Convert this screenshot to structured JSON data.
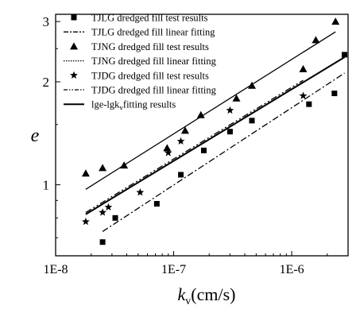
{
  "chart_data": {
    "type": "scatter",
    "xlabel": "k",
    "xlabel_sub": "v",
    "xlabel_unit": "(cm/s)",
    "ylabel": "e",
    "x_scale": "log",
    "y_scale": "log",
    "xlim": [
      1e-08,
      3e-06
    ],
    "ylim": [
      0.62,
      3.15
    ],
    "x_ticks": [
      {
        "value": 1e-08,
        "label": "1E-8"
      },
      {
        "value": 1e-07,
        "label": "1E-7"
      },
      {
        "value": 1e-06,
        "label": "1E-6"
      }
    ],
    "y_ticks": [
      {
        "value": 1,
        "label": "1"
      },
      {
        "value": 2,
        "label": "2"
      },
      {
        "value": 3,
        "label": "3"
      }
    ],
    "legend_position": "top-left",
    "legend": [
      {
        "label": "TJLG dredged fill test results",
        "marker": "square"
      },
      {
        "label": "TJLG dredged fill linear fitting",
        "line": "dashdot"
      },
      {
        "label": "TJNG dredged fill test results",
        "marker": "triangle"
      },
      {
        "label": "TJNG dredged fill linear fitting",
        "line": "dotted"
      },
      {
        "label": "TJDG dredged fill test results",
        "marker": "star"
      },
      {
        "label": "TJDG dredged fill linear fitting",
        "line": "dashdotdot"
      },
      {
        "label": "lge-lgk",
        "label_sub": "v",
        "label_tail": "fitting results",
        "line": "solid"
      }
    ],
    "series": [
      {
        "name": "TJLG dredged fill test results",
        "marker": "square",
        "points": [
          [
            2.5e-08,
            0.68
          ],
          [
            3.2e-08,
            0.8
          ],
          [
            7.2e-08,
            0.88
          ],
          [
            1.15e-07,
            1.07
          ],
          [
            1.8e-07,
            1.26
          ],
          [
            3e-07,
            1.43
          ],
          [
            4.6e-07,
            1.54
          ],
          [
            1.4e-06,
            1.72
          ],
          [
            2.3e-06,
            1.85
          ],
          [
            2.8e-06,
            2.4
          ]
        ]
      },
      {
        "name": "TJNG dredged fill test results",
        "marker": "triangle",
        "points": [
          [
            1.8e-08,
            1.08
          ],
          [
            2.5e-08,
            1.12
          ],
          [
            3.8e-08,
            1.14
          ],
          [
            8.8e-08,
            1.28
          ],
          [
            1.25e-07,
            1.44
          ],
          [
            1.7e-07,
            1.6
          ],
          [
            3.4e-07,
            1.79
          ],
          [
            4.6e-07,
            1.95
          ],
          [
            1.25e-06,
            2.18
          ],
          [
            1.6e-06,
            2.65
          ],
          [
            2.35e-06,
            3.0
          ]
        ]
      },
      {
        "name": "TJDG dredged fill test results",
        "marker": "star",
        "points": [
          [
            1.8e-08,
            0.78
          ],
          [
            2.5e-08,
            0.83
          ],
          [
            2.8e-08,
            0.86
          ],
          [
            5.2e-08,
            0.95
          ],
          [
            9e-08,
            1.24
          ],
          [
            1.15e-07,
            1.34
          ],
          [
            3e-07,
            1.65
          ],
          [
            1.25e-06,
            1.82
          ]
        ]
      }
    ],
    "fits": [
      {
        "name": "TJLG dredged fill linear fitting",
        "style": "dashdot",
        "x": [
          2.5e-08,
          2.8e-06
        ],
        "y": [
          0.73,
          2.12
        ]
      },
      {
        "name": "TJNG dredged fill linear fitting",
        "style": "dotted",
        "x": [
          1.8e-08,
          1.25e-06
        ],
        "y": [
          0.82,
          2.0
        ]
      },
      {
        "name": "TJDG dredged fill linear fitting",
        "style": "dashdotdot",
        "x": [
          1.8e-08,
          1.25e-06
        ],
        "y": [
          0.83,
          2.02
        ]
      },
      {
        "name": "lge-lgkv fitting results",
        "style": "solid",
        "x": [
          1.8e-08,
          2.8e-06
        ],
        "y": [
          0.82,
          2.36
        ]
      },
      {
        "name": "TJNG upper bound",
        "style": "solid",
        "x": [
          1.8e-08,
          2.35e-06
        ],
        "y": [
          0.97,
          2.8
        ]
      }
    ]
  }
}
